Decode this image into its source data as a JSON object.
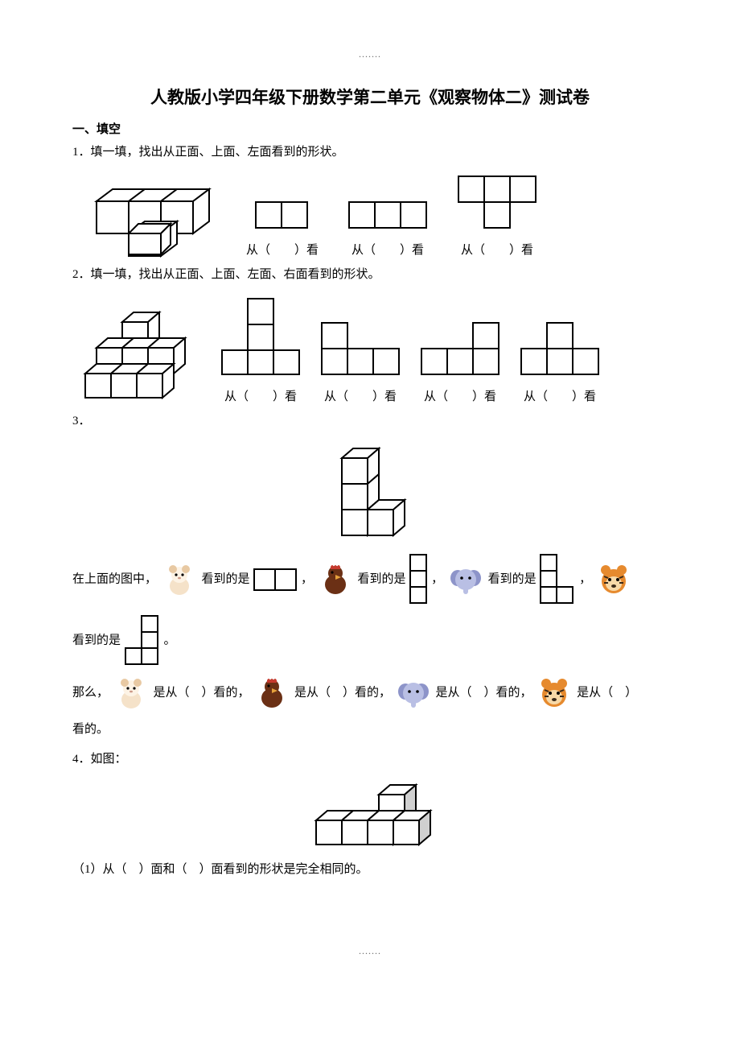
{
  "dots": ".......",
  "title": "人教版小学四年级下册数学第二单元《观察物体二》测试卷",
  "sectionHead": "一、填空",
  "q1": {
    "stem": "1．填一填，找出从正面、上面、左面看到的形状。",
    "caps": [
      "从（　　）看",
      "从（　　）看",
      "从（　　）看"
    ]
  },
  "q2": {
    "stem": "2．填一填，找出从正面、上面、左面、右面看到的形状。",
    "caps": [
      "从（　　）看",
      "从（　　）看",
      "从（　　）看",
      "从（　　）看"
    ]
  },
  "q3": {
    "num": "3．",
    "t1": "在上面的图中，",
    "t2": "看到的是",
    "t3": "，",
    "t4": "看到的是",
    "t5": "，",
    "t6": "看到的是",
    "t7": "，",
    "t8": "看到的是",
    "t9": "。",
    "line2a": "那么，",
    "line2b": "是从（　）看的，",
    "line2c": "是从（　）看的，",
    "line2d": "是从（　）看的，",
    "line2e": "是从（　）",
    "line2f": "看的。"
  },
  "q4": {
    "stem": "4．如图：",
    "sub1": "（1）从（　）面和（　）面看到的形状是完全相同的。"
  },
  "cube": {
    "fill": "#ffffff",
    "stroke": "#000000",
    "grey": "#d0d0d0"
  },
  "animals": {
    "hamster": {
      "body": "#f5e2c9",
      "ear": "#e8c9a3",
      "face": "#fdf3e5"
    },
    "rooster": {
      "body": "#6b3015",
      "comb": "#c73a2e",
      "beak": "#e6a23c"
    },
    "elephant": {
      "body": "#b9bfe4",
      "dark": "#8d94c9"
    },
    "tiger": {
      "body": "#e68a2e",
      "face": "#f7d9a8",
      "stripe": "#3a2a1a"
    }
  }
}
